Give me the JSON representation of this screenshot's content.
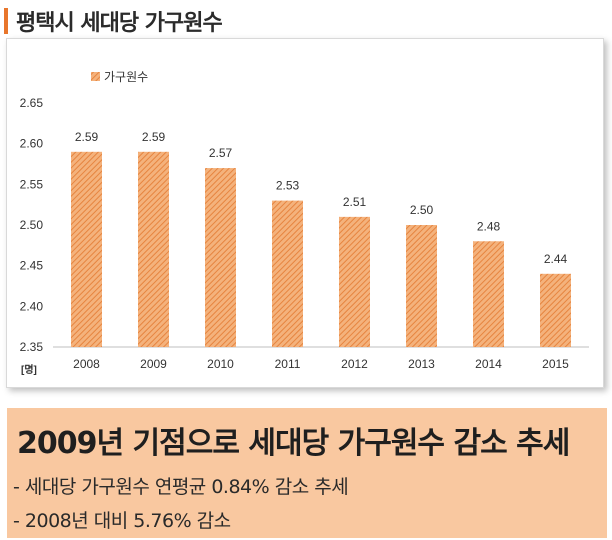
{
  "header": {
    "title": "평택시 세대당 가구원수"
  },
  "colors": {
    "accent": "#e8762c",
    "bar": "#f0a36a",
    "summary_bg": "#f9c8a0"
  },
  "chart_data": {
    "type": "bar",
    "title": "",
    "unit_label": "[명]",
    "categories": [
      "2008",
      "2009",
      "2010",
      "2011",
      "2012",
      "2013",
      "2014",
      "2015"
    ],
    "series": [
      {
        "name": "가구원수",
        "values": [
          2.59,
          2.59,
          2.57,
          2.53,
          2.51,
          2.5,
          2.48,
          2.44
        ]
      }
    ],
    "data_labels": [
      "2.59",
      "2.59",
      "2.57",
      "2.53",
      "2.51",
      "2.50",
      "2.48",
      "2.44"
    ],
    "ylim": [
      2.35,
      2.65
    ],
    "yticks": [
      "2.65",
      "2.60",
      "2.55",
      "2.50",
      "2.45",
      "2.40",
      "2.35"
    ],
    "grid": false,
    "legend_position": "top-left"
  },
  "summary": {
    "headline": "2009년 기점으로 세대당 가구원수 감소 추세",
    "line1": "- 세대당 가구원수 연평균 0.84% 감소 추세",
    "line2": "- 2008년 대비 5.76% 감소"
  }
}
